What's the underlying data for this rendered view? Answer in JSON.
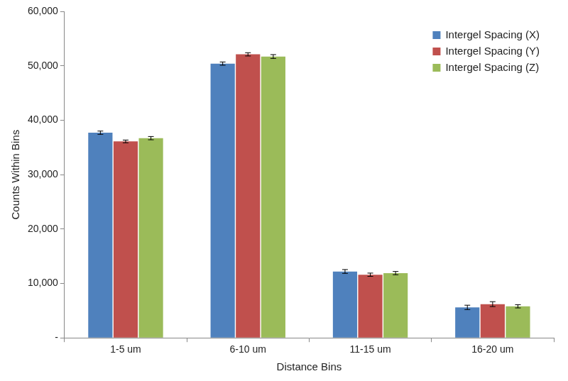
{
  "chart_data": {
    "type": "bar",
    "categories": [
      "1-5 um",
      "6-10 um",
      "11-15 um",
      "16-20 um"
    ],
    "series": [
      {
        "name": "Intergel Spacing (X)",
        "color": "#4f81bd",
        "values": [
          37700,
          50400,
          12200,
          5600
        ],
        "errors": [
          300,
          300,
          350,
          400
        ]
      },
      {
        "name": "Intergel Spacing (Y)",
        "color": "#c0504d",
        "values": [
          36100,
          52100,
          11600,
          6200
        ],
        "errors": [
          250,
          300,
          300,
          450
        ]
      },
      {
        "name": "Intergel Spacing (Z)",
        "color": "#9bbb59",
        "values": [
          36700,
          51700,
          11900,
          5800
        ],
        "errors": [
          300,
          350,
          300,
          300
        ]
      }
    ],
    "x_label": "Distance Bins",
    "y_label": "Counts Within Bins",
    "ylim": [
      0,
      60000
    ],
    "yticks": [
      {
        "value": 0,
        "label": "-"
      },
      {
        "value": 10000,
        "label": "10,000"
      },
      {
        "value": 20000,
        "label": "20,000"
      },
      {
        "value": 30000,
        "label": "30,000"
      },
      {
        "value": 40000,
        "label": "40,000"
      },
      {
        "value": 50000,
        "label": "50,000"
      },
      {
        "value": 60000,
        "label": "60,000"
      }
    ],
    "grid": false,
    "legend": "upper right"
  }
}
